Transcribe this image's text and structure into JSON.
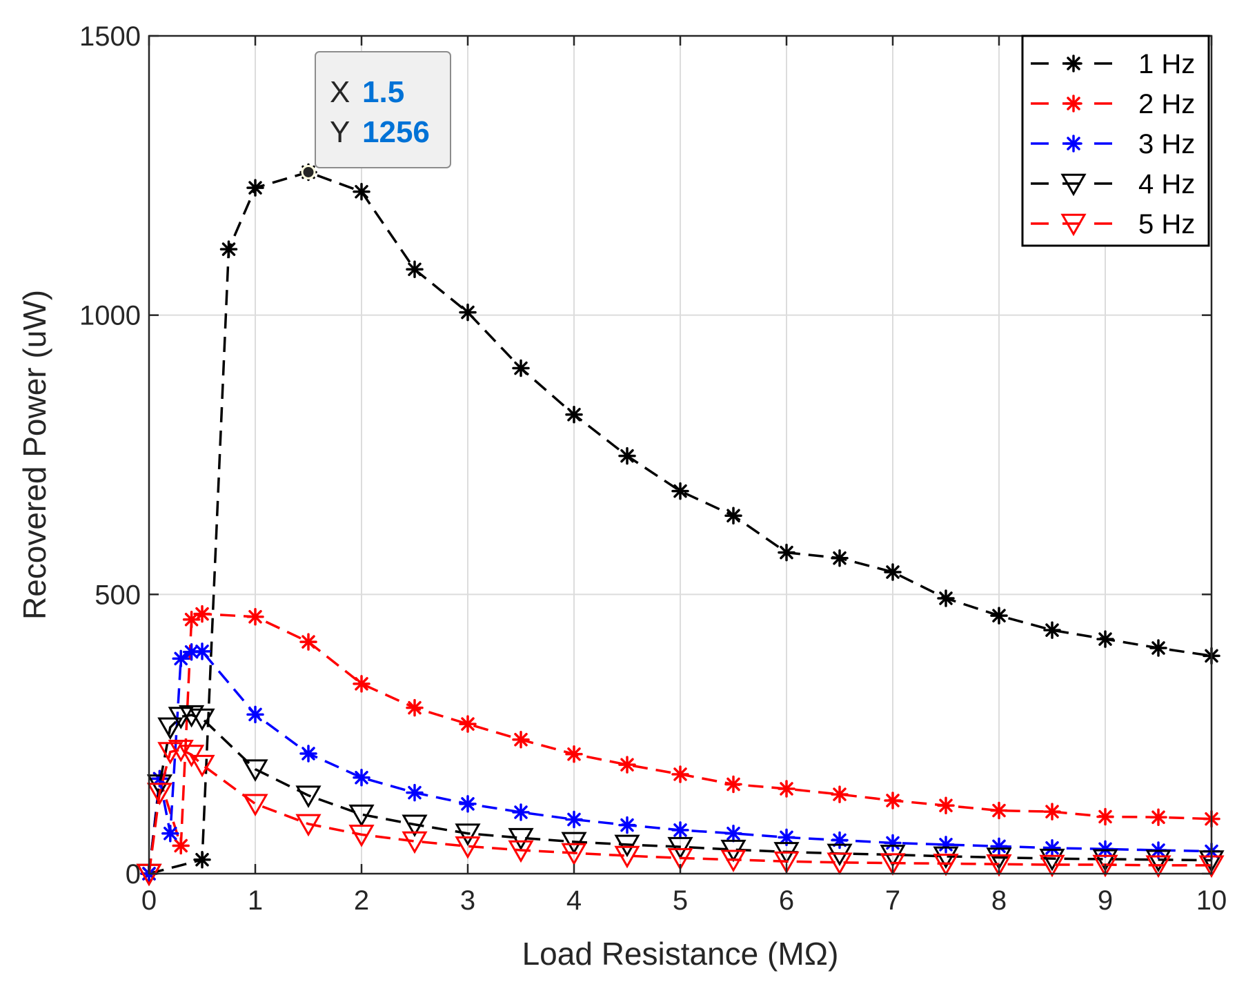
{
  "chart_data": {
    "type": "line",
    "xlabel": "Load Resistance (MΩ)",
    "ylabel": "Recovered Power (uW)",
    "xlim": [
      0,
      10
    ],
    "ylim": [
      0,
      1500
    ],
    "xticks": [
      0,
      1,
      2,
      3,
      4,
      5,
      6,
      7,
      8,
      9,
      10
    ],
    "yticks": [
      0,
      500,
      1000,
      1500
    ],
    "xtick_labels": [
      "0",
      "1",
      "2",
      "3",
      "4",
      "5",
      "6",
      "7",
      "8",
      "9",
      "10"
    ],
    "ytick_labels": [
      "0",
      "500",
      "1000",
      "1500"
    ],
    "grid": true,
    "legend_position": "top-right",
    "series": [
      {
        "name": "1 Hz",
        "color": "#000000",
        "marker": "asterisk",
        "x": [
          0,
          0.5,
          0.75,
          1,
          1.5,
          2,
          2.5,
          3,
          3.5,
          4,
          4.5,
          5,
          5.5,
          6,
          6.5,
          7,
          7.5,
          8,
          8.5,
          9,
          9.5,
          10
        ],
        "y": [
          0,
          25,
          1118,
          1228,
          1256,
          1221,
          1082,
          1005,
          905,
          822,
          748,
          685,
          641,
          575,
          565,
          540,
          493,
          462,
          436,
          420,
          404,
          390
        ]
      },
      {
        "name": "2 Hz",
        "color": "#ff0000",
        "marker": "asterisk",
        "x": [
          0,
          0.1,
          0.3,
          0.4,
          0.5,
          1,
          1.5,
          2,
          2.5,
          3,
          3.5,
          4,
          4.5,
          5,
          5.5,
          6,
          6.5,
          7,
          7.5,
          8,
          8.5,
          9,
          9.5,
          10
        ],
        "y": [
          0,
          170,
          50,
          455,
          465,
          460,
          415,
          340,
          297,
          268,
          240,
          214,
          195,
          178,
          160,
          152,
          142,
          131,
          122,
          113,
          111,
          102,
          101,
          98
        ]
      },
      {
        "name": "3 Hz",
        "color": "#0000ff",
        "marker": "asterisk",
        "x": [
          0,
          0.1,
          0.2,
          0.3,
          0.4,
          0.5,
          1,
          1.5,
          2,
          2.5,
          3,
          3.5,
          4,
          4.5,
          5,
          5.5,
          6,
          6.5,
          7,
          7.5,
          8,
          8.5,
          9,
          9.5,
          10
        ],
        "y": [
          0,
          170,
          72,
          385,
          397,
          398,
          285,
          215,
          172,
          145,
          125,
          110,
          97,
          87,
          78,
          72,
          65,
          60,
          55,
          52,
          49,
          46,
          44,
          42,
          40
        ]
      },
      {
        "name": "4 Hz",
        "color": "#000000",
        "marker": "triangle-down",
        "x": [
          0,
          0.1,
          0.2,
          0.3,
          0.4,
          0.5,
          1,
          1.5,
          2,
          2.5,
          3,
          3.5,
          4,
          4.5,
          5,
          5.5,
          6,
          6.5,
          7,
          7.5,
          8,
          8.5,
          9,
          9.5,
          10
        ],
        "y": [
          0,
          160,
          262,
          281,
          284,
          278,
          187,
          140,
          106,
          88,
          72,
          64,
          57,
          52,
          48,
          43,
          39,
          36,
          34,
          31,
          29,
          27,
          26,
          25,
          24
        ]
      },
      {
        "name": "5 Hz",
        "color": "#ff0000",
        "marker": "triangle-down",
        "x": [
          0,
          0.1,
          0.2,
          0.3,
          0.4,
          0.5,
          1,
          1.5,
          2,
          2.5,
          3,
          3.5,
          4,
          4.5,
          5,
          5.5,
          6,
          6.5,
          7,
          7.5,
          8,
          8.5,
          9,
          9.5,
          10
        ],
        "y": [
          0,
          145,
          218,
          222,
          213,
          195,
          125,
          89,
          70,
          58,
          49,
          42,
          37,
          32,
          28,
          25,
          22,
          20,
          19,
          18,
          17,
          16,
          16,
          15,
          15
        ]
      }
    ],
    "annotation": {
      "x_label": "X",
      "x_value": "1.5",
      "y_label": "Y",
      "y_value": "1256",
      "point": [
        1.5,
        1256
      ]
    }
  }
}
